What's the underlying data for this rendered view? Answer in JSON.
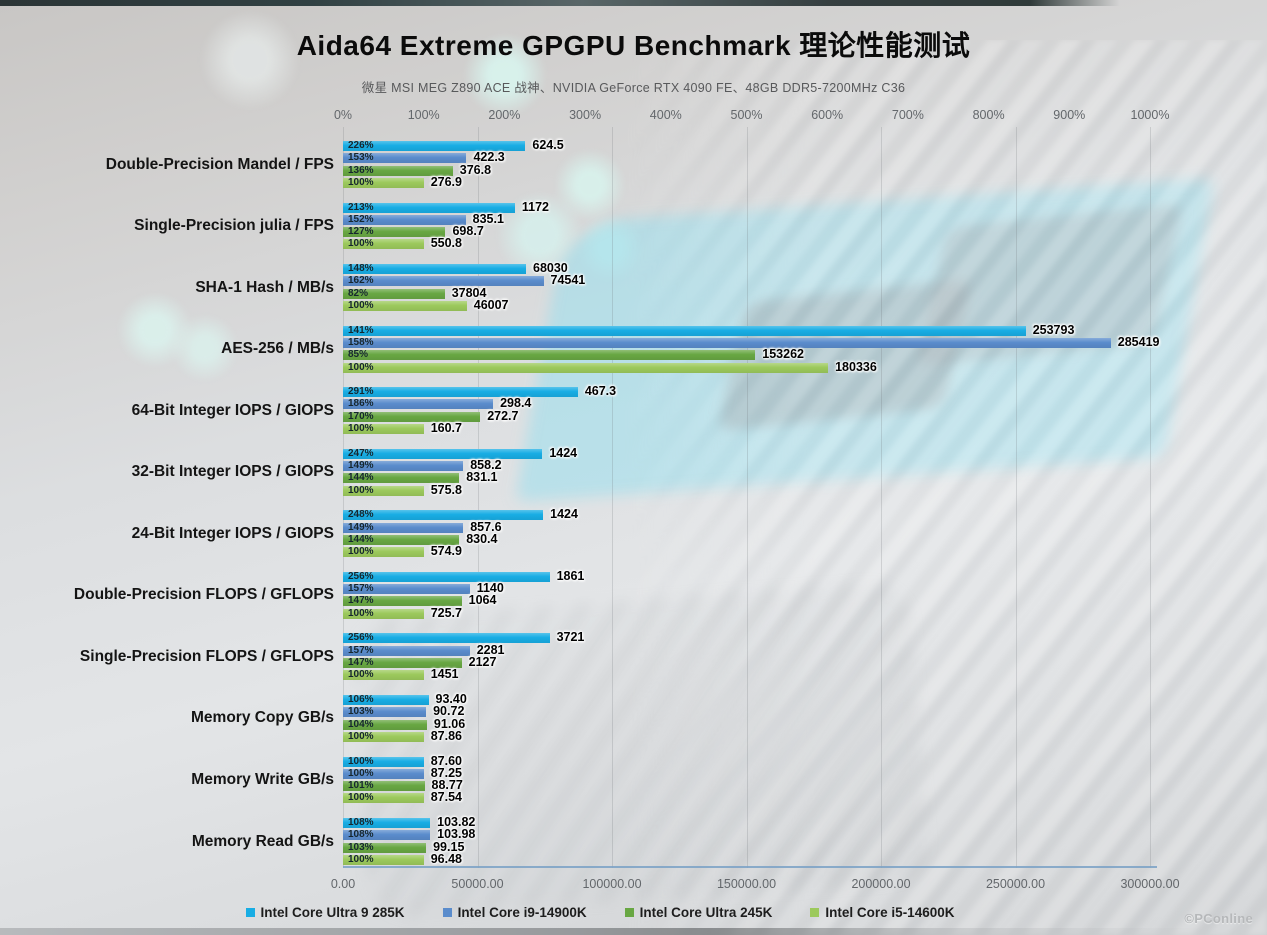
{
  "watermark": {
    "text": "©PConline"
  },
  "chart_data": {
    "type": "bar",
    "orientation": "horizontal",
    "title": "Aida64 Extreme GPGPU Benchmark 理论性能测试",
    "subtitle": "微星 MSI MEG Z890 ACE 战神、NVIDIA GeForce RTX 4090 FE、48GB DDR5-7200MHz  C36",
    "legend_position": "bottom",
    "grid": "vertical-faint",
    "top_axis": {
      "unit": "percent",
      "max": 1000,
      "ticks": [
        "0%",
        "100%",
        "200%",
        "300%",
        "400%",
        "500%",
        "600%",
        "700%",
        "800%",
        "900%",
        "1000%"
      ]
    },
    "bottom_axis": {
      "unit": "absolute",
      "max": 300000,
      "ticks": [
        "0.00",
        "50000.00",
        "100000.00",
        "150000.00",
        "200000.00",
        "250000.00",
        "300000.00"
      ]
    },
    "series": [
      {
        "name": "Intel Core Ultra 9 285K",
        "color": "#18ade4"
      },
      {
        "name": "Intel Core i9-14900K",
        "color": "#5a8ccc"
      },
      {
        "name": "Intel Core Ultra 245K",
        "color": "#68a743"
      },
      {
        "name": "Intel Core i5-14600K",
        "color": "#9cc95c"
      }
    ],
    "categories": [
      {
        "label": "Double-Precision Mandel / FPS",
        "bar_scale": "percent",
        "bars": [
          {
            "pct": "226%",
            "value": "624.5"
          },
          {
            "pct": "153%",
            "value": "422.3"
          },
          {
            "pct": "136%",
            "value": "376.8"
          },
          {
            "pct": "100%",
            "value": "276.9"
          }
        ]
      },
      {
        "label": "Single-Precision julia / FPS",
        "bar_scale": "percent",
        "bars": [
          {
            "pct": "213%",
            "value": "1172"
          },
          {
            "pct": "152%",
            "value": "835.1"
          },
          {
            "pct": "127%",
            "value": "698.7"
          },
          {
            "pct": "100%",
            "value": "550.8"
          }
        ]
      },
      {
        "label": "SHA-1 Hash / MB/s",
        "bar_scale": "absolute",
        "bars": [
          {
            "pct": "148%",
            "value": "68030"
          },
          {
            "pct": "162%",
            "value": "74541"
          },
          {
            "pct": "82%",
            "value": "37804"
          },
          {
            "pct": "100%",
            "value": "46007"
          }
        ]
      },
      {
        "label": "AES-256 / MB/s",
        "bar_scale": "absolute",
        "bars": [
          {
            "pct": "141%",
            "value": "253793"
          },
          {
            "pct": "158%",
            "value": "285419"
          },
          {
            "pct": "85%",
            "value": "153262"
          },
          {
            "pct": "100%",
            "value": "180336"
          }
        ]
      },
      {
        "label": "64-Bit Integer IOPS / GIOPS",
        "bar_scale": "percent",
        "bars": [
          {
            "pct": "291%",
            "value": "467.3"
          },
          {
            "pct": "186%",
            "value": "298.4"
          },
          {
            "pct": "170%",
            "value": "272.7"
          },
          {
            "pct": "100%",
            "value": "160.7"
          }
        ]
      },
      {
        "label": "32-Bit Integer IOPS / GIOPS",
        "bar_scale": "percent",
        "bars": [
          {
            "pct": "247%",
            "value": "1424"
          },
          {
            "pct": "149%",
            "value": "858.2"
          },
          {
            "pct": "144%",
            "value": "831.1"
          },
          {
            "pct": "100%",
            "value": "575.8"
          }
        ]
      },
      {
        "label": "24-Bit Integer IOPS / GIOPS",
        "bar_scale": "percent",
        "bars": [
          {
            "pct": "248%",
            "value": "1424"
          },
          {
            "pct": "149%",
            "value": "857.6"
          },
          {
            "pct": "144%",
            "value": "830.4"
          },
          {
            "pct": "100%",
            "value": "574.9"
          }
        ]
      },
      {
        "label": "Double-Precision FLOPS / GFLOPS",
        "bar_scale": "percent",
        "bars": [
          {
            "pct": "256%",
            "value": "1861"
          },
          {
            "pct": "157%",
            "value": "1140"
          },
          {
            "pct": "147%",
            "value": "1064"
          },
          {
            "pct": "100%",
            "value": "725.7"
          }
        ]
      },
      {
        "label": "Single-Precision FLOPS / GFLOPS",
        "bar_scale": "percent",
        "bars": [
          {
            "pct": "256%",
            "value": "3721"
          },
          {
            "pct": "157%",
            "value": "2281"
          },
          {
            "pct": "147%",
            "value": "2127"
          },
          {
            "pct": "100%",
            "value": "1451"
          }
        ]
      },
      {
        "label": "Memory Copy GB/s",
        "bar_scale": "percent",
        "bars": [
          {
            "pct": "106%",
            "value": "93.40"
          },
          {
            "pct": "103%",
            "value": "90.72"
          },
          {
            "pct": "104%",
            "value": "91.06"
          },
          {
            "pct": "100%",
            "value": "87.86"
          }
        ]
      },
      {
        "label": "Memory Write GB/s",
        "bar_scale": "percent",
        "bars": [
          {
            "pct": "100%",
            "value": "87.60"
          },
          {
            "pct": "100%",
            "value": "87.25"
          },
          {
            "pct": "101%",
            "value": "88.77"
          },
          {
            "pct": "100%",
            "value": "87.54"
          }
        ]
      },
      {
        "label": "Memory Read GB/s",
        "bar_scale": "percent",
        "bars": [
          {
            "pct": "108%",
            "value": "103.82"
          },
          {
            "pct": "108%",
            "value": "103.98"
          },
          {
            "pct": "103%",
            "value": "99.15"
          },
          {
            "pct": "100%",
            "value": "96.48"
          }
        ]
      }
    ]
  }
}
